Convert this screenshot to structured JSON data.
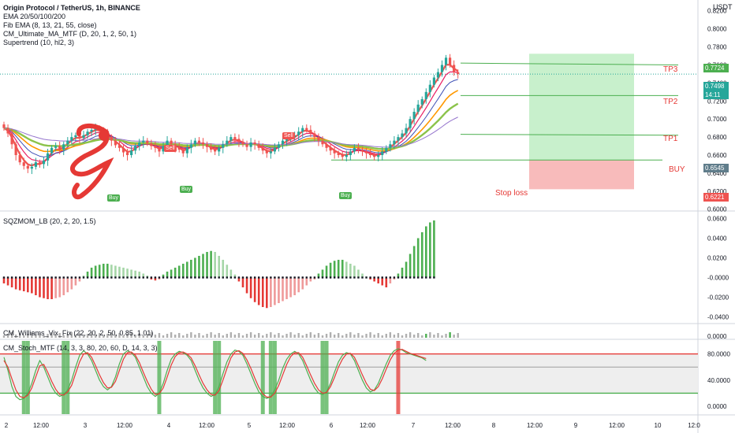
{
  "header": {
    "symbol": "Origin Protocol / TetherUS, 1h, BINANCE",
    "indicators": [
      "EMA 20/50/100/200",
      "Fib EMA (8, 13, 21, 55, close)",
      "CM_Ultimate_MA_MTF (D, 20, 1, 2, 50, 1)",
      "Supertrend (10, hl2, 3)"
    ]
  },
  "currency": "USDT",
  "panels": {
    "momentum": "SQZMOM_LB (20, 2, 20, 1.5)",
    "williams": "CM_Williams_Vix_Fix (22, 20, 2, 50, 0.85, 1.01)",
    "stoch": "CM_Stoch_MTF (14, 3, 3, 80, 20, 60, D, 14, 3, 3)"
  },
  "price_tags": {
    "tp3": "0.7724",
    "last": "0.7498",
    "countdown": "14:11",
    "entry": "0.6545",
    "stop": "0.6221"
  },
  "trade_labels": {
    "tp3": "TP3",
    "tp2": "TP2",
    "tp1": "TP1",
    "buy": "BUY",
    "stop": "Stop loss"
  },
  "signals": [
    "Buy",
    "Buy",
    "Buy",
    "Sell",
    "Sell"
  ],
  "x_axis_labels": [
    "2",
    "12:00",
    "3",
    "12:00",
    "4",
    "12:00",
    "5",
    "12:00",
    "6",
    "12:00",
    "7",
    "12:00",
    "8",
    "12:00",
    "9",
    "12:00",
    "10",
    "12:0"
  ],
  "colors": {
    "up": "#26a69a",
    "down": "#ef5350",
    "target": "#4caf50",
    "stop_zone": "#f8bbbb",
    "profit_zone": "#c8f0cc"
  },
  "chart_data": [
    {
      "type": "candlestick",
      "title": "Origin Protocol / TetherUS, 1h, BINANCE",
      "yticks": [
        "0.8200",
        "0.8000",
        "0.7800",
        "0.7600",
        "0.7400",
        "0.7200",
        "0.7000",
        "0.6800",
        "0.6600",
        "0.6400",
        "0.6200",
        "0.6000"
      ],
      "ylim": [
        0.598,
        0.832
      ],
      "approx_closes": [
        0.69,
        0.684,
        0.672,
        0.66,
        0.652,
        0.648,
        0.645,
        0.647,
        0.652,
        0.65,
        0.654,
        0.662,
        0.668,
        0.67,
        0.666,
        0.672,
        0.676,
        0.68,
        0.682,
        0.679,
        0.682,
        0.686,
        0.688,
        0.69,
        0.687,
        0.684,
        0.68,
        0.676,
        0.671,
        0.668,
        0.663,
        0.66,
        0.665,
        0.67,
        0.674,
        0.676,
        0.673,
        0.67,
        0.668,
        0.664,
        0.67,
        0.676,
        0.672,
        0.669,
        0.666,
        0.662,
        0.668,
        0.672,
        0.676,
        0.674,
        0.672,
        0.669,
        0.666,
        0.664,
        0.668,
        0.672,
        0.676,
        0.68,
        0.678,
        0.675,
        0.672,
        0.669,
        0.674,
        0.672,
        0.668,
        0.665,
        0.662,
        0.664,
        0.668,
        0.672,
        0.676,
        0.678,
        0.68,
        0.682,
        0.686,
        0.69,
        0.688,
        0.684,
        0.68,
        0.676,
        0.672,
        0.668,
        0.665,
        0.662,
        0.66,
        0.658,
        0.66,
        0.664,
        0.668,
        0.666,
        0.664,
        0.662,
        0.66,
        0.658,
        0.66,
        0.664,
        0.668,
        0.672,
        0.676,
        0.68,
        0.684,
        0.69,
        0.7,
        0.708,
        0.716,
        0.722,
        0.73,
        0.738,
        0.746,
        0.752,
        0.76,
        0.768,
        0.76,
        0.752,
        0.75
      ]
    },
    {
      "type": "bar",
      "title": "SQZMOM_LB (20, 2, 20, 1.5)",
      "yticks": [
        "0.0600",
        "0.0400",
        "0.0200",
        "-0.0000",
        "-0.0200",
        "-0.0400"
      ],
      "ylim": [
        -0.046,
        0.066
      ],
      "approx_values": [
        -0.006,
        -0.008,
        -0.01,
        -0.012,
        -0.013,
        -0.014,
        -0.015,
        -0.016,
        -0.018,
        -0.02,
        -0.021,
        -0.022,
        -0.022,
        -0.021,
        -0.02,
        -0.018,
        -0.015,
        -0.012,
        -0.008,
        -0.004,
        0.002,
        0.006,
        0.01,
        0.012,
        0.013,
        0.014,
        0.014,
        0.013,
        0.012,
        0.011,
        0.01,
        0.009,
        0.008,
        0.007,
        0.006,
        0.004,
        0.002,
        -0.002,
        -0.003,
        -0.002,
        0.003,
        0.006,
        0.008,
        0.01,
        0.012,
        0.014,
        0.016,
        0.018,
        0.02,
        0.022,
        0.024,
        0.026,
        0.027,
        0.026,
        0.022,
        0.018,
        0.013,
        0.008,
        0.003,
        -0.004,
        -0.01,
        -0.016,
        -0.021,
        -0.025,
        -0.028,
        -0.03,
        -0.031,
        -0.03,
        -0.028,
        -0.026,
        -0.024,
        -0.022,
        -0.02,
        -0.018,
        -0.015,
        -0.012,
        -0.008,
        -0.004,
        -0.002,
        0.004,
        0.008,
        0.012,
        0.015,
        0.017,
        0.018,
        0.018,
        0.016,
        0.014,
        0.012,
        0.008,
        0.004,
        0.001,
        -0.002,
        -0.004,
        -0.006,
        -0.008,
        -0.01,
        -0.006,
        -0.002,
        0.004,
        0.01,
        0.016,
        0.024,
        0.032,
        0.04,
        0.046,
        0.052,
        0.056,
        0.058
      ]
    },
    {
      "type": "bar",
      "title": "CM_Williams_Vix_Fix (22, 20, 2, 50, 0.85, 1.01)",
      "yticks": [
        "0.0000"
      ],
      "note": "small histogram strip"
    },
    {
      "type": "line",
      "title": "CM_Stoch_MTF (14, 3, 3, 80, 20, 60, D, 14, 3, 3)",
      "yticks": [
        "80.0000",
        "40.0000",
        "0.0000"
      ],
      "ylim": [
        -12,
        100
      ],
      "levels": [
        80,
        60,
        20
      ],
      "series": [
        {
          "approx_values": [
            75,
            55,
            30,
            15,
            10,
            12,
            20,
            35,
            55,
            70,
            60,
            45,
            30,
            20,
            15,
            18,
            25,
            40,
            60,
            78,
            85,
            80,
            70,
            55,
            40,
            30,
            25,
            30,
            45,
            65,
            80,
            85,
            82,
            75,
            60,
            45,
            30,
            20,
            15,
            20,
            35,
            55,
            72,
            80,
            84,
            82,
            78,
            70,
            55,
            40,
            28,
            20,
            15,
            18,
            30,
            50,
            68,
            80,
            86,
            84,
            78,
            65,
            50,
            35,
            22,
            15,
            12,
            15,
            25,
            40,
            58,
            72,
            80,
            84,
            80,
            70,
            55,
            40,
            28,
            20,
            18,
            22,
            35,
            52,
            68,
            78,
            82,
            80,
            70,
            55,
            40,
            28,
            22,
            25,
            35,
            50,
            65,
            78,
            85,
            88,
            86,
            82,
            80,
            78,
            76,
            74,
            70
          ]
        },
        {
          "approx_values": [
            70,
            60,
            42,
            25,
            15,
            13,
            17,
            28,
            45,
            62,
            64,
            52,
            38,
            26,
            18,
            17,
            22,
            32,
            50,
            68,
            80,
            82,
            75,
            62,
            48,
            36,
            28,
            29,
            38,
            55,
            72,
            82,
            83,
            78,
            67,
            52,
            38,
            26,
            18,
            19,
            28,
            45,
            63,
            76,
            82,
            83,
            80,
            74,
            62,
            48,
            35,
            25,
            18,
            17,
            24,
            40,
            58,
            74,
            83,
            85,
            81,
            71,
            58,
            43,
            29,
            19,
            14,
            14,
            20,
            32,
            48,
            64,
            76,
            82,
            82,
            75,
            62,
            48,
            35,
            25,
            20,
            21,
            30,
            44,
            60,
            72,
            80,
            81,
            75,
            62,
            48,
            35,
            26,
            24,
            30,
            42,
            57,
            71,
            81,
            86,
            87,
            84,
            81,
            79,
            77,
            75,
            73
          ]
        }
      ]
    }
  ]
}
